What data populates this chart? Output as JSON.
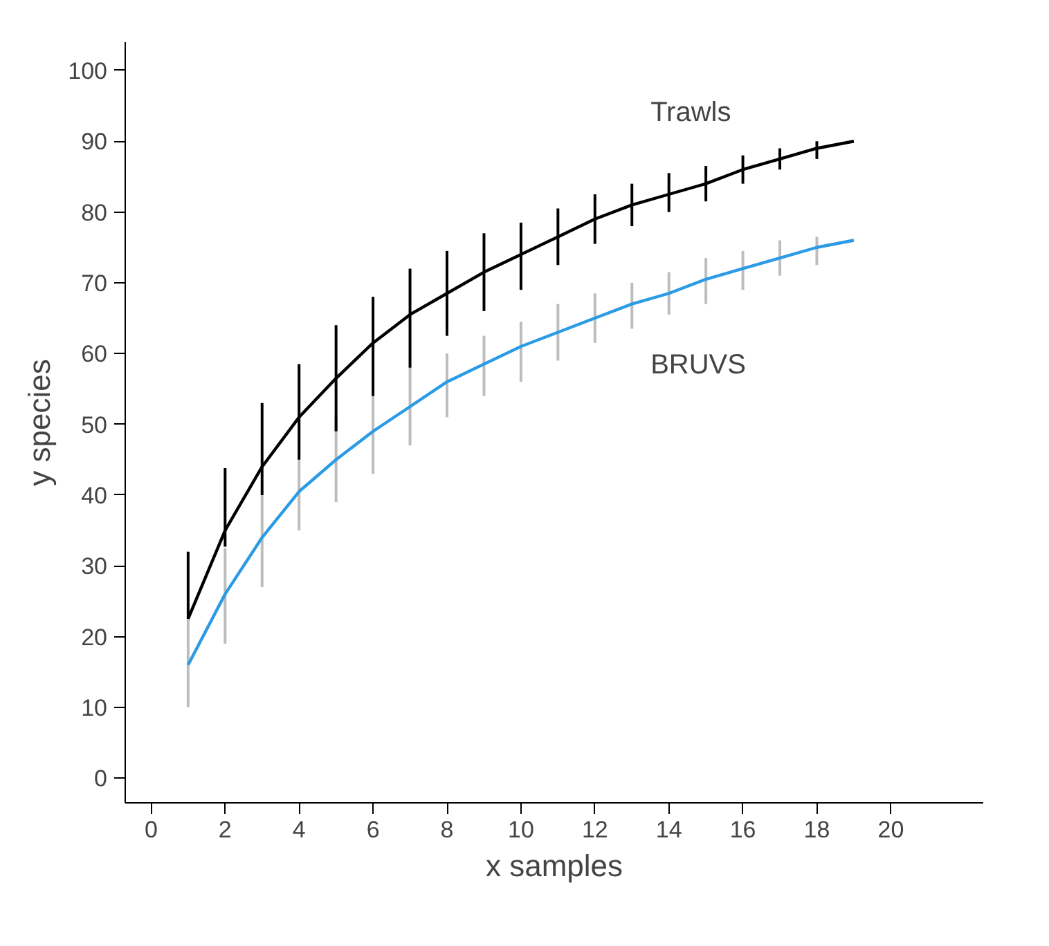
{
  "chart_data": {
    "type": "line",
    "xlabel": "x samples",
    "ylabel": "y species",
    "x": [
      1,
      2,
      3,
      4,
      5,
      6,
      7,
      8,
      9,
      10,
      11,
      12,
      13,
      14,
      15,
      16,
      17,
      18,
      19
    ],
    "xlim": [
      -0.7,
      22.5
    ],
    "xticks": [
      0,
      2,
      4,
      6,
      8,
      10,
      12,
      14,
      16,
      18,
      20
    ],
    "ylim": [
      -3.5,
      104
    ],
    "yticks": [
      0,
      10,
      20,
      30,
      40,
      50,
      60,
      70,
      80,
      90,
      100
    ],
    "grid": false,
    "marker": "none",
    "line_style": "solid",
    "series": [
      {
        "name": "BRUVS",
        "color": "#2b9be6",
        "values": [
          16,
          26,
          34,
          40.5,
          45,
          49,
          52.5,
          56,
          58.5,
          61,
          63,
          65,
          67,
          68.5,
          70.5,
          72,
          73.5,
          75,
          76
        ],
        "errors": [
          [
            10,
            22.5
          ],
          [
            19,
            32.5
          ],
          [
            27,
            40
          ],
          [
            35,
            45
          ],
          [
            39,
            51
          ],
          [
            43,
            54
          ],
          [
            47,
            58
          ],
          [
            51,
            60
          ],
          [
            54,
            62.5
          ],
          [
            56,
            64.5
          ],
          [
            59,
            67
          ],
          [
            61.5,
            68.5
          ],
          [
            63.5,
            70
          ],
          [
            65.5,
            71.5
          ],
          [
            67,
            73.5
          ],
          [
            69,
            74.5
          ],
          [
            71,
            76
          ],
          [
            72.5,
            76.5
          ],
          null
        ]
      },
      {
        "name": "Trawls",
        "color": "#000000",
        "values": [
          22.5,
          35,
          44,
          51,
          56.5,
          61.5,
          65.5,
          68.5,
          71.5,
          74,
          76.5,
          79,
          81,
          82.5,
          84,
          86,
          87.5,
          89,
          90
        ],
        "errors": [
          [
            22.5,
            32
          ],
          [
            32.7,
            43.8
          ],
          [
            40,
            53
          ],
          [
            45,
            58.5
          ],
          [
            49,
            64
          ],
          [
            54,
            68
          ],
          [
            58,
            72
          ],
          [
            62.5,
            74.5
          ],
          [
            66,
            77
          ],
          [
            69,
            78.5
          ],
          [
            72.5,
            80.5
          ],
          [
            75.5,
            82.5
          ],
          [
            78,
            84
          ],
          [
            80,
            85.5
          ],
          [
            81.5,
            86.5
          ],
          [
            84,
            88
          ],
          [
            86,
            89
          ],
          [
            87.5,
            90
          ],
          null
        ]
      }
    ]
  }
}
